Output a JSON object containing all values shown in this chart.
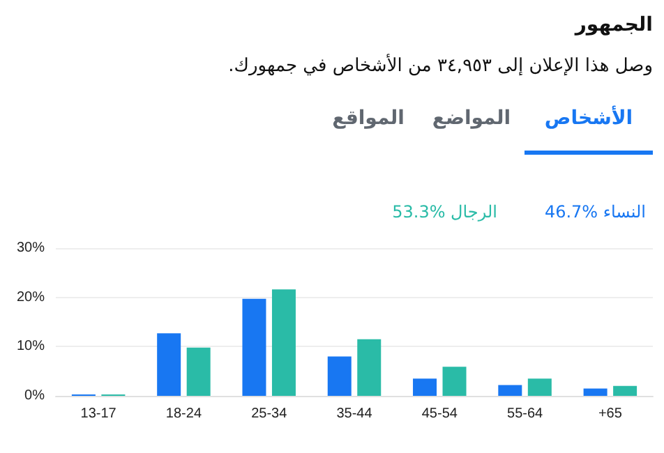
{
  "chart_data": {
    "type": "bar",
    "title": "الجمهور",
    "subtitle": "وصل هذا الإعلان إلى ٣٤,٩٥٣ من الأشخاص في جمهورك.",
    "annotations": [
      "الأشخاص",
      "المواضع",
      "المواقع"
    ],
    "categories": [
      "13-17",
      "18-24",
      "25-34",
      "35-44",
      "45-54",
      "55-64",
      "+65"
    ],
    "series": [
      {
        "name": "46.7% النساء",
        "color": "#1877f2",
        "values": [
          0.3,
          12.7,
          19.7,
          8.0,
          3.5,
          2.2,
          1.5
        ]
      },
      {
        "name": "53.3% الرجال",
        "color": "#2abba7",
        "values": [
          0.3,
          9.8,
          21.6,
          11.5,
          5.9,
          3.5,
          2.0
        ]
      }
    ],
    "ylim": [
      0,
      30
    ],
    "yticks": [
      {
        "value": 0,
        "label": "0%"
      },
      {
        "value": 10,
        "label": "10%"
      },
      {
        "value": 20,
        "label": "20%"
      },
      {
        "value": 30,
        "label": "30%"
      }
    ],
    "grid": "y",
    "legend": "top right"
  }
}
